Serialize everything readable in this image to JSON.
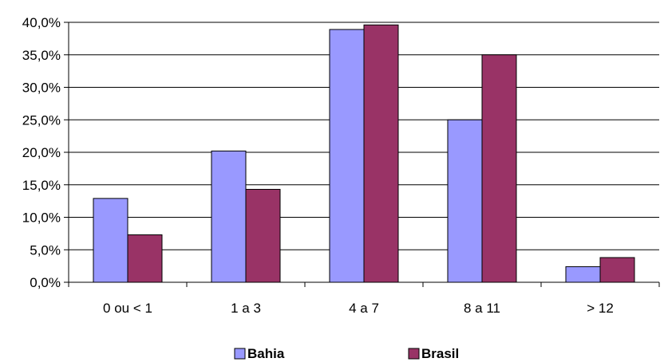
{
  "chart_data": {
    "type": "bar",
    "categories": [
      "0 ou < 1",
      "1 a 3",
      "4 a 7",
      "8 a 11",
      "> 12"
    ],
    "series": [
      {
        "name": "Bahia",
        "color": "#9999ff",
        "values": [
          12.9,
          20.2,
          38.9,
          25.0,
          2.4
        ]
      },
      {
        "name": "Brasil",
        "color": "#993366",
        "values": [
          7.3,
          14.3,
          39.6,
          35.0,
          3.8
        ]
      }
    ],
    "ylim": [
      0,
      40
    ],
    "yticks": [
      "0,0%",
      "5,0%",
      "10,0%",
      "15,0%",
      "20,0%",
      "25,0%",
      "30,0%",
      "35,0%",
      "40,0%"
    ],
    "title": "",
    "xlabel": "",
    "ylabel": "",
    "grid": true,
    "legend": "bottom"
  }
}
